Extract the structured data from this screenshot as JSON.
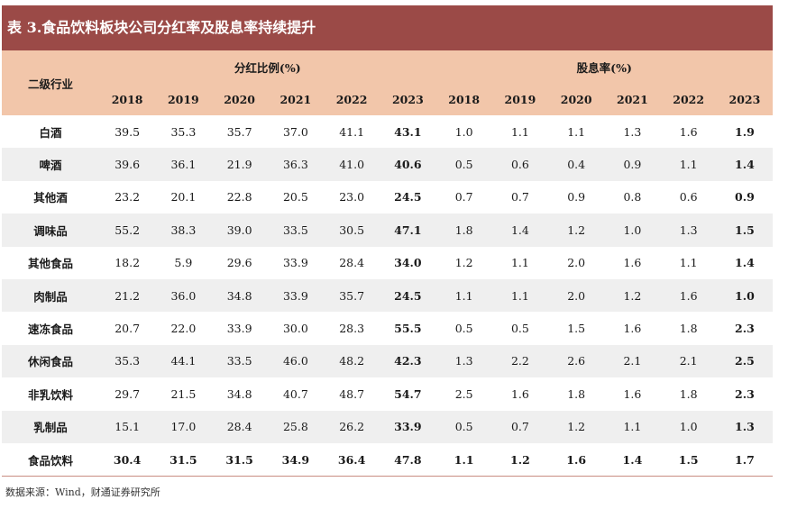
{
  "title": "表 3.食品饮料板块公司分红率及股息率持续提升",
  "header": {
    "industry": "二级行业",
    "group1": "分红比例(%)",
    "group2": "股息率(%)",
    "years": [
      "2018",
      "2019",
      "2020",
      "2021",
      "2022",
      "2023"
    ]
  },
  "rows": [
    {
      "name": "白酒",
      "payout": [
        "39.5",
        "35.3",
        "35.7",
        "37.0",
        "41.1",
        "43.1"
      ],
      "yield": [
        "1.0",
        "1.1",
        "1.1",
        "1.3",
        "1.6",
        "1.9"
      ]
    },
    {
      "name": "啤酒",
      "payout": [
        "39.6",
        "36.1",
        "21.9",
        "36.3",
        "41.0",
        "40.6"
      ],
      "yield": [
        "0.5",
        "0.6",
        "0.4",
        "0.9",
        "1.1",
        "1.4"
      ]
    },
    {
      "name": "其他酒",
      "payout": [
        "23.2",
        "20.1",
        "22.8",
        "20.5",
        "23.0",
        "24.5"
      ],
      "yield": [
        "0.7",
        "0.7",
        "0.9",
        "0.8",
        "0.6",
        "0.9"
      ]
    },
    {
      "name": "调味品",
      "payout": [
        "55.2",
        "38.3",
        "39.0",
        "33.5",
        "30.5",
        "47.1"
      ],
      "yield": [
        "1.8",
        "1.4",
        "1.2",
        "1.0",
        "1.3",
        "1.5"
      ]
    },
    {
      "name": "其他食品",
      "payout": [
        "18.2",
        "5.9",
        "29.6",
        "33.9",
        "28.4",
        "34.0"
      ],
      "yield": [
        "1.2",
        "1.1",
        "2.0",
        "1.6",
        "1.1",
        "1.4"
      ]
    },
    {
      "name": "肉制品",
      "payout": [
        "21.2",
        "36.0",
        "34.8",
        "33.9",
        "35.7",
        "24.5"
      ],
      "yield": [
        "1.1",
        "1.1",
        "2.0",
        "1.2",
        "1.6",
        "1.0"
      ]
    },
    {
      "name": "速冻食品",
      "payout": [
        "20.7",
        "22.0",
        "33.9",
        "30.0",
        "28.3",
        "55.5"
      ],
      "yield": [
        "0.5",
        "0.5",
        "1.5",
        "1.6",
        "1.8",
        "2.3"
      ]
    },
    {
      "name": "休闲食品",
      "payout": [
        "35.3",
        "44.1",
        "33.5",
        "46.0",
        "48.2",
        "42.3"
      ],
      "yield": [
        "1.3",
        "2.2",
        "2.6",
        "2.1",
        "2.1",
        "2.5"
      ]
    },
    {
      "name": "非乳饮料",
      "payout": [
        "29.7",
        "21.5",
        "34.8",
        "40.7",
        "48.7",
        "54.7"
      ],
      "yield": [
        "2.5",
        "1.6",
        "1.8",
        "1.6",
        "1.8",
        "2.3"
      ]
    },
    {
      "name": "乳制品",
      "payout": [
        "15.1",
        "17.0",
        "28.4",
        "25.8",
        "26.2",
        "33.9"
      ],
      "yield": [
        "0.5",
        "0.7",
        "1.2",
        "1.1",
        "1.0",
        "1.3"
      ]
    },
    {
      "name": "食品饮料",
      "payout": [
        "30.4",
        "31.5",
        "31.5",
        "34.9",
        "36.4",
        "47.8"
      ],
      "yield": [
        "1.1",
        "1.2",
        "1.6",
        "1.4",
        "1.5",
        "1.7"
      ],
      "summary": true
    }
  ],
  "source": "数据来源：Wind，财通证券研究所"
}
